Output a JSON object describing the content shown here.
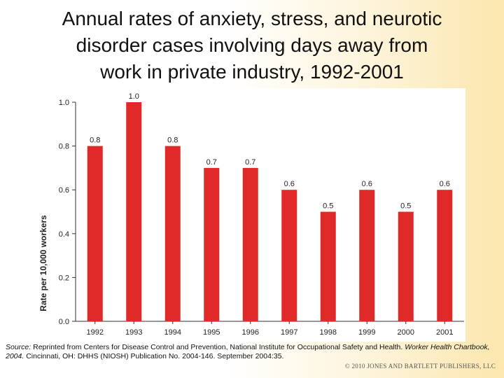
{
  "slide": {
    "title": "Annual rates of anxiety, stress, and neurotic\ndisorder cases involving days away from\nwork in private industry, 1992-2001"
  },
  "chart_data": {
    "type": "bar",
    "title": "",
    "xlabel": "",
    "ylabel": "Rate per 10,000 workers",
    "categories": [
      "1992",
      "1993",
      "1994",
      "1995",
      "1996",
      "1997",
      "1998",
      "1999",
      "2000",
      "2001"
    ],
    "values": [
      0.8,
      1.0,
      0.8,
      0.7,
      0.7,
      0.6,
      0.5,
      0.6,
      0.5,
      0.6
    ],
    "data_labels": [
      "0.8",
      "1.0",
      "0.8",
      "0.7",
      "0.7",
      "0.6",
      "0.5",
      "0.6",
      "0.5",
      "0.6"
    ],
    "ylim": [
      0,
      1.0
    ],
    "yticks": [
      "0.0",
      "0.2",
      "0.4",
      "0.6",
      "0.8",
      "1.0"
    ],
    "bar_color": "#e02a2a",
    "grid": false,
    "legend": "none"
  },
  "source": {
    "label": "Source:",
    "text_1": " Reprinted from Centers for Disease Control and Prevention, National Institute for Occupational Safety and Health. ",
    "italic": "Worker Health Chartbook, 2004.",
    "text_2": " Cincinnati, OH: DHHS (NIOSH) Publication No. 2004-146. September 2004:35."
  },
  "copyright": "© 2010 JONES AND BARTLETT PUBLISHERS, LLC"
}
